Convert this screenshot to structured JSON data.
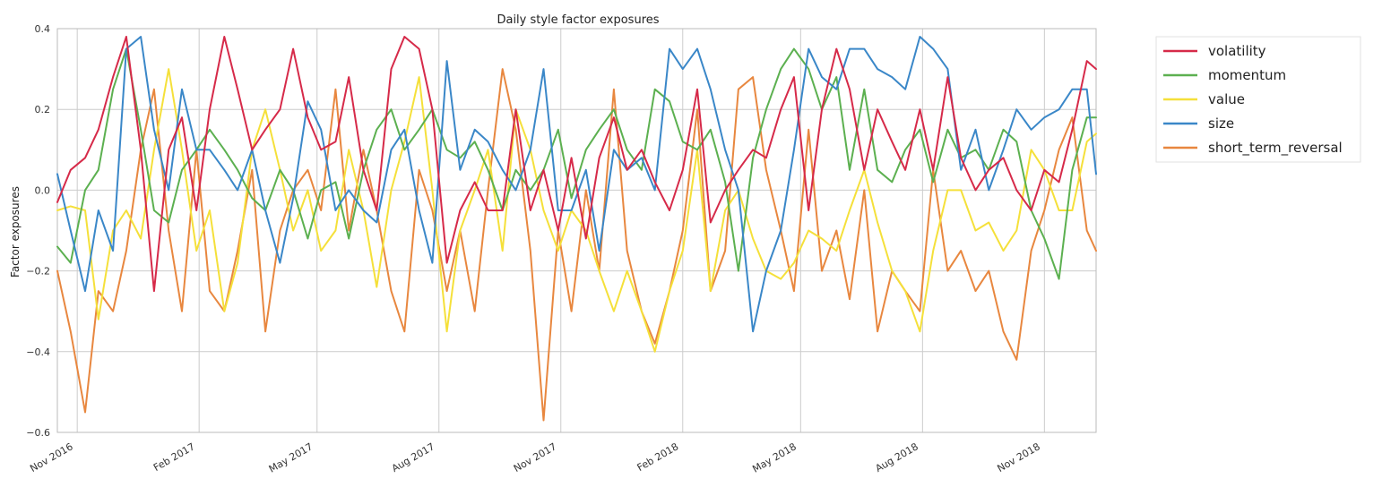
{
  "chart_data": {
    "type": "line",
    "title": "Daily style factor exposures",
    "ylabel": "Factor exposures",
    "xlabel": "",
    "ylim": [
      -0.6,
      0.4
    ],
    "xlim": [
      "2016-10-17",
      "2018-12-10"
    ],
    "yticks": [
      -0.6,
      -0.4,
      -0.2,
      0.0,
      0.2,
      0.4
    ],
    "ytick_labels": [
      "−0.6",
      "−0.4",
      "−0.2",
      "0.0",
      "0.2",
      "0.4"
    ],
    "xticks": [
      "2016-11-01",
      "2017-02-01",
      "2017-05-01",
      "2017-08-01",
      "2017-11-01",
      "2018-02-01",
      "2018-05-01",
      "2018-08-01",
      "2018-11-01"
    ],
    "xtick_labels": [
      "Nov 2016",
      "Feb 2017",
      "May 2017",
      "Aug 2017",
      "Nov 2017",
      "Feb 2018",
      "May 2018",
      "Aug 2018",
      "Nov 2018"
    ],
    "grid": true,
    "legend_position": "outside-right",
    "series": [
      {
        "name": "volatility",
        "color": "#d62a49",
        "x": [
          "2016-10-17",
          "2016-10-27",
          "2016-11-07",
          "2016-11-17",
          "2016-11-28",
          "2016-12-08",
          "2016-12-19",
          "2016-12-29",
          "2017-01-09",
          "2017-01-19",
          "2017-01-30",
          "2017-02-09",
          "2017-02-20",
          "2017-03-02",
          "2017-03-13",
          "2017-03-23",
          "2017-04-03",
          "2017-04-13",
          "2017-04-24",
          "2017-05-04",
          "2017-05-15",
          "2017-05-25",
          "2017-06-05",
          "2017-06-15",
          "2017-06-26",
          "2017-07-06",
          "2017-07-17",
          "2017-07-27",
          "2017-08-07",
          "2017-08-17",
          "2017-08-28",
          "2017-09-07",
          "2017-09-18",
          "2017-09-28",
          "2017-10-09",
          "2017-10-19",
          "2017-10-30",
          "2017-11-09",
          "2017-11-20",
          "2017-11-30",
          "2017-12-11",
          "2017-12-21",
          "2018-01-01",
          "2018-01-11",
          "2018-01-22",
          "2018-02-01",
          "2018-02-12",
          "2018-02-22",
          "2018-03-05",
          "2018-03-15",
          "2018-03-26",
          "2018-04-05",
          "2018-04-16",
          "2018-04-26",
          "2018-05-07",
          "2018-05-17",
          "2018-05-28",
          "2018-06-07",
          "2018-06-18",
          "2018-06-28",
          "2018-07-09",
          "2018-07-19",
          "2018-07-30",
          "2018-08-09",
          "2018-08-20",
          "2018-08-30",
          "2018-09-10",
          "2018-09-20",
          "2018-10-01",
          "2018-10-11",
          "2018-10-22",
          "2018-11-01",
          "2018-11-12",
          "2018-11-22",
          "2018-12-03",
          "2018-12-10"
        ],
        "values": [
          -0.03,
          0.05,
          0.08,
          0.15,
          0.28,
          0.38,
          0.1,
          -0.25,
          0.1,
          0.18,
          -0.05,
          0.2,
          0.38,
          0.25,
          0.1,
          0.15,
          0.2,
          0.35,
          0.18,
          0.1,
          0.12,
          0.28,
          0.05,
          -0.05,
          0.3,
          0.38,
          0.35,
          0.2,
          -0.18,
          -0.05,
          0.02,
          -0.05,
          -0.05,
          0.2,
          -0.05,
          0.05,
          -0.1,
          0.08,
          -0.12,
          0.08,
          0.18,
          0.05,
          0.1,
          0.02,
          -0.05,
          0.05,
          0.25,
          -0.08,
          0.0,
          0.05,
          0.1,
          0.08,
          0.2,
          0.28,
          -0.05,
          0.2,
          0.35,
          0.25,
          0.05,
          0.2,
          0.12,
          0.05,
          0.2,
          0.05,
          0.28,
          0.08,
          0.0,
          0.05,
          0.08,
          0.0,
          -0.05,
          0.05,
          0.02,
          0.15,
          0.32,
          0.3
        ]
      },
      {
        "name": "momentum",
        "color": "#5cb050",
        "x": [
          "2016-10-17",
          "2016-10-27",
          "2016-11-07",
          "2016-11-17",
          "2016-11-28",
          "2016-12-08",
          "2016-12-19",
          "2016-12-29",
          "2017-01-09",
          "2017-01-19",
          "2017-01-30",
          "2017-02-09",
          "2017-02-20",
          "2017-03-02",
          "2017-03-13",
          "2017-03-23",
          "2017-04-03",
          "2017-04-13",
          "2017-04-24",
          "2017-05-04",
          "2017-05-15",
          "2017-05-25",
          "2017-06-05",
          "2017-06-15",
          "2017-06-26",
          "2017-07-06",
          "2017-07-17",
          "2017-07-27",
          "2017-08-07",
          "2017-08-17",
          "2017-08-28",
          "2017-09-07",
          "2017-09-18",
          "2017-09-28",
          "2017-10-09",
          "2017-10-19",
          "2017-10-30",
          "2017-11-09",
          "2017-11-20",
          "2017-11-30",
          "2017-12-11",
          "2017-12-21",
          "2018-01-01",
          "2018-01-11",
          "2018-01-22",
          "2018-02-01",
          "2018-02-12",
          "2018-02-22",
          "2018-03-05",
          "2018-03-15",
          "2018-03-26",
          "2018-04-05",
          "2018-04-16",
          "2018-04-26",
          "2018-05-07",
          "2018-05-17",
          "2018-05-28",
          "2018-06-07",
          "2018-06-18",
          "2018-06-28",
          "2018-07-09",
          "2018-07-19",
          "2018-07-30",
          "2018-08-09",
          "2018-08-20",
          "2018-08-30",
          "2018-09-10",
          "2018-09-20",
          "2018-10-01",
          "2018-10-11",
          "2018-10-22",
          "2018-11-01",
          "2018-11-12",
          "2018-11-22",
          "2018-12-03",
          "2018-12-10"
        ],
        "values": [
          -0.14,
          -0.18,
          0.0,
          0.05,
          0.25,
          0.35,
          0.15,
          -0.05,
          -0.08,
          0.05,
          0.1,
          0.15,
          0.1,
          0.05,
          -0.02,
          -0.05,
          0.05,
          0.0,
          -0.12,
          0.0,
          0.02,
          -0.12,
          0.05,
          0.15,
          0.2,
          0.1,
          0.15,
          0.2,
          0.1,
          0.08,
          0.12,
          0.05,
          -0.05,
          0.05,
          0.0,
          0.05,
          0.15,
          -0.02,
          0.1,
          0.15,
          0.2,
          0.1,
          0.05,
          0.25,
          0.22,
          0.12,
          0.1,
          0.15,
          0.02,
          -0.2,
          0.08,
          0.2,
          0.3,
          0.35,
          0.3,
          0.2,
          0.28,
          0.05,
          0.25,
          0.05,
          0.02,
          0.1,
          0.15,
          0.02,
          0.15,
          0.08,
          0.1,
          0.05,
          0.15,
          0.12,
          -0.05,
          -0.12,
          -0.22,
          0.05,
          0.18,
          0.18
        ]
      },
      {
        "name": "value",
        "color": "#f5e03a",
        "x": [
          "2016-10-17",
          "2016-10-27",
          "2016-11-07",
          "2016-11-17",
          "2016-11-28",
          "2016-12-08",
          "2016-12-19",
          "2016-12-29",
          "2017-01-09",
          "2017-01-19",
          "2017-01-30",
          "2017-02-09",
          "2017-02-20",
          "2017-03-02",
          "2017-03-13",
          "2017-03-23",
          "2017-04-03",
          "2017-04-13",
          "2017-04-24",
          "2017-05-04",
          "2017-05-15",
          "2017-05-25",
          "2017-06-05",
          "2017-06-15",
          "2017-06-26",
          "2017-07-06",
          "2017-07-17",
          "2017-07-27",
          "2017-08-07",
          "2017-08-17",
          "2017-08-28",
          "2017-09-07",
          "2017-09-18",
          "2017-09-28",
          "2017-10-09",
          "2017-10-19",
          "2017-10-30",
          "2017-11-09",
          "2017-11-20",
          "2017-11-30",
          "2017-12-11",
          "2017-12-21",
          "2018-01-01",
          "2018-01-11",
          "2018-01-22",
          "2018-02-01",
          "2018-02-12",
          "2018-02-22",
          "2018-03-05",
          "2018-03-15",
          "2018-03-26",
          "2018-04-05",
          "2018-04-16",
          "2018-04-26",
          "2018-05-07",
          "2018-05-17",
          "2018-05-28",
          "2018-06-07",
          "2018-06-18",
          "2018-06-28",
          "2018-07-09",
          "2018-07-19",
          "2018-07-30",
          "2018-08-09",
          "2018-08-20",
          "2018-08-30",
          "2018-09-10",
          "2018-09-20",
          "2018-10-01",
          "2018-10-11",
          "2018-10-22",
          "2018-11-01",
          "2018-11-12",
          "2018-11-22",
          "2018-12-03",
          "2018-12-10"
        ],
        "values": [
          -0.05,
          -0.04,
          -0.05,
          -0.32,
          -0.1,
          -0.05,
          -0.12,
          0.1,
          0.3,
          0.1,
          -0.15,
          -0.05,
          -0.3,
          -0.18,
          0.1,
          0.2,
          0.05,
          -0.1,
          0.0,
          -0.15,
          -0.1,
          0.1,
          -0.05,
          -0.24,
          0.0,
          0.12,
          0.28,
          0.0,
          -0.35,
          -0.1,
          0.0,
          0.1,
          -0.15,
          0.2,
          0.1,
          -0.05,
          -0.15,
          -0.05,
          -0.1,
          -0.2,
          -0.3,
          -0.2,
          -0.3,
          -0.4,
          -0.25,
          -0.15,
          0.1,
          -0.25,
          -0.05,
          0.0,
          -0.12,
          -0.2,
          -0.22,
          -0.18,
          -0.1,
          -0.12,
          -0.15,
          -0.05,
          0.05,
          -0.08,
          -0.2,
          -0.25,
          -0.35,
          -0.15,
          0.0,
          0.0,
          -0.1,
          -0.08,
          -0.15,
          -0.1,
          0.1,
          0.05,
          -0.05,
          -0.05,
          0.12,
          0.14
        ]
      },
      {
        "name": "size",
        "color": "#3a87c8",
        "x": [
          "2016-10-17",
          "2016-10-27",
          "2016-11-07",
          "2016-11-17",
          "2016-11-28",
          "2016-12-08",
          "2016-12-19",
          "2016-12-29",
          "2017-01-09",
          "2017-01-19",
          "2017-01-30",
          "2017-02-09",
          "2017-02-20",
          "2017-03-02",
          "2017-03-13",
          "2017-03-23",
          "2017-04-03",
          "2017-04-13",
          "2017-04-24",
          "2017-05-04",
          "2017-05-15",
          "2017-05-25",
          "2017-06-05",
          "2017-06-15",
          "2017-06-26",
          "2017-07-06",
          "2017-07-17",
          "2017-07-27",
          "2017-08-07",
          "2017-08-17",
          "2017-08-28",
          "2017-09-07",
          "2017-09-18",
          "2017-09-28",
          "2017-10-09",
          "2017-10-19",
          "2017-10-30",
          "2017-11-09",
          "2017-11-20",
          "2017-11-30",
          "2017-12-11",
          "2017-12-21",
          "2018-01-01",
          "2018-01-11",
          "2018-01-22",
          "2018-02-01",
          "2018-02-12",
          "2018-02-22",
          "2018-03-05",
          "2018-03-15",
          "2018-03-26",
          "2018-04-05",
          "2018-04-16",
          "2018-04-26",
          "2018-05-07",
          "2018-05-17",
          "2018-05-28",
          "2018-06-07",
          "2018-06-18",
          "2018-06-28",
          "2018-07-09",
          "2018-07-19",
          "2018-07-30",
          "2018-08-09",
          "2018-08-20",
          "2018-08-30",
          "2018-09-10",
          "2018-09-20",
          "2018-10-01",
          "2018-10-11",
          "2018-10-22",
          "2018-11-01",
          "2018-11-12",
          "2018-11-22",
          "2018-12-03",
          "2018-12-10"
        ],
        "values": [
          0.04,
          -0.1,
          -0.25,
          -0.05,
          -0.15,
          0.35,
          0.38,
          0.15,
          0.0,
          0.25,
          0.1,
          0.1,
          0.05,
          0.0,
          0.1,
          -0.05,
          -0.18,
          -0.02,
          0.22,
          0.15,
          -0.05,
          0.0,
          -0.05,
          -0.08,
          0.1,
          0.15,
          -0.05,
          -0.18,
          0.32,
          0.05,
          0.15,
          0.12,
          0.05,
          0.0,
          0.1,
          0.3,
          -0.05,
          -0.05,
          0.05,
          -0.15,
          0.1,
          0.05,
          0.08,
          0.0,
          0.35,
          0.3,
          0.35,
          0.25,
          0.1,
          0.0,
          -0.35,
          -0.2,
          -0.1,
          0.1,
          0.35,
          0.28,
          0.25,
          0.35,
          0.35,
          0.3,
          0.28,
          0.25,
          0.38,
          0.35,
          0.3,
          0.05,
          0.15,
          0.0,
          0.1,
          0.2,
          0.15,
          0.18,
          0.2,
          0.25,
          0.25,
          0.04
        ]
      },
      {
        "name": "short_term_reversal",
        "color": "#e8873f",
        "x": [
          "2016-10-17",
          "2016-10-27",
          "2016-11-07",
          "2016-11-17",
          "2016-11-28",
          "2016-12-08",
          "2016-12-19",
          "2016-12-29",
          "2017-01-09",
          "2017-01-19",
          "2017-01-30",
          "2017-02-09",
          "2017-02-20",
          "2017-03-02",
          "2017-03-13",
          "2017-03-23",
          "2017-04-03",
          "2017-04-13",
          "2017-04-24",
          "2017-05-04",
          "2017-05-15",
          "2017-05-25",
          "2017-06-05",
          "2017-06-15",
          "2017-06-26",
          "2017-07-06",
          "2017-07-17",
          "2017-07-27",
          "2017-08-07",
          "2017-08-17",
          "2017-08-28",
          "2017-09-07",
          "2017-09-18",
          "2017-09-28",
          "2017-10-09",
          "2017-10-19",
          "2017-10-30",
          "2017-11-09",
          "2017-11-20",
          "2017-11-30",
          "2017-12-11",
          "2017-12-21",
          "2018-01-01",
          "2018-01-11",
          "2018-01-22",
          "2018-02-01",
          "2018-02-12",
          "2018-02-22",
          "2018-03-05",
          "2018-03-15",
          "2018-03-26",
          "2018-04-05",
          "2018-04-16",
          "2018-04-26",
          "2018-05-07",
          "2018-05-17",
          "2018-05-28",
          "2018-06-07",
          "2018-06-18",
          "2018-06-28",
          "2018-07-09",
          "2018-07-19",
          "2018-07-30",
          "2018-08-09",
          "2018-08-20",
          "2018-08-30",
          "2018-09-10",
          "2018-09-20",
          "2018-10-01",
          "2018-10-11",
          "2018-10-22",
          "2018-11-01",
          "2018-11-12",
          "2018-11-22",
          "2018-12-03",
          "2018-12-10"
        ],
        "values": [
          -0.2,
          -0.35,
          -0.55,
          -0.25,
          -0.3,
          -0.15,
          0.1,
          0.25,
          -0.1,
          -0.3,
          0.1,
          -0.25,
          -0.3,
          -0.15,
          0.05,
          -0.35,
          -0.1,
          0.0,
          0.05,
          -0.05,
          0.25,
          -0.1,
          0.1,
          -0.05,
          -0.25,
          -0.35,
          0.05,
          -0.05,
          -0.25,
          -0.1,
          -0.3,
          0.0,
          0.3,
          0.15,
          -0.15,
          -0.57,
          -0.1,
          -0.3,
          0.0,
          -0.2,
          0.25,
          -0.15,
          -0.3,
          -0.38,
          -0.25,
          -0.1,
          0.2,
          -0.25,
          -0.15,
          0.25,
          0.28,
          0.05,
          -0.1,
          -0.25,
          0.15,
          -0.2,
          -0.1,
          -0.27,
          0.0,
          -0.35,
          -0.2,
          -0.25,
          -0.3,
          0.05,
          -0.2,
          -0.15,
          -0.25,
          -0.2,
          -0.35,
          -0.42,
          -0.15,
          -0.05,
          0.1,
          0.18,
          -0.1,
          -0.15
        ]
      }
    ]
  }
}
